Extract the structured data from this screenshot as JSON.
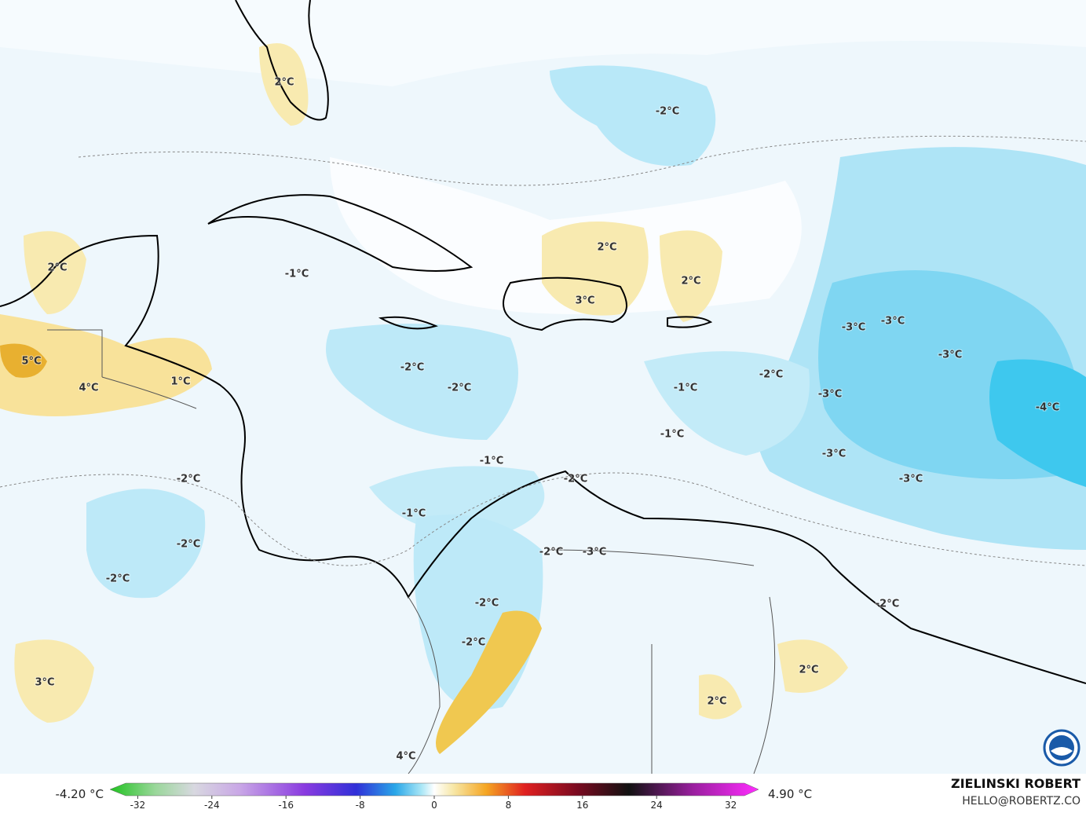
{
  "map": {
    "contour_labels": [
      "2°C",
      "-2°C",
      "2°C",
      "2°C",
      "2°C",
      "-1°C",
      "3°C",
      "-3°C",
      "-3°C",
      "-3°C",
      "5°C",
      "-2°C",
      "1°C",
      "4°C",
      "-2°C",
      "-1°C",
      "-2°C",
      "-3°C",
      "-4°C",
      "-1°C",
      "-3°C",
      "-1°C",
      "-2°C",
      "-2°C",
      "-3°C",
      "-1°C",
      "-2°C",
      "-2°C",
      "-3°C",
      "-2°C",
      "-2°C",
      "-2°C",
      "-2°C",
      "2°C",
      "3°C",
      "2°C",
      "4°C"
    ],
    "colorbar": {
      "min_label": "-4.20 °C",
      "max_label": "4.90 °C",
      "lim": [
        -35,
        35
      ],
      "ticks": [
        -32,
        -24,
        -16,
        -8,
        0,
        8,
        16,
        24,
        32
      ]
    },
    "credit": {
      "name": "ZIELINSKI ROBERT",
      "contact": "HELLO@ROBERTZ.CO"
    }
  }
}
